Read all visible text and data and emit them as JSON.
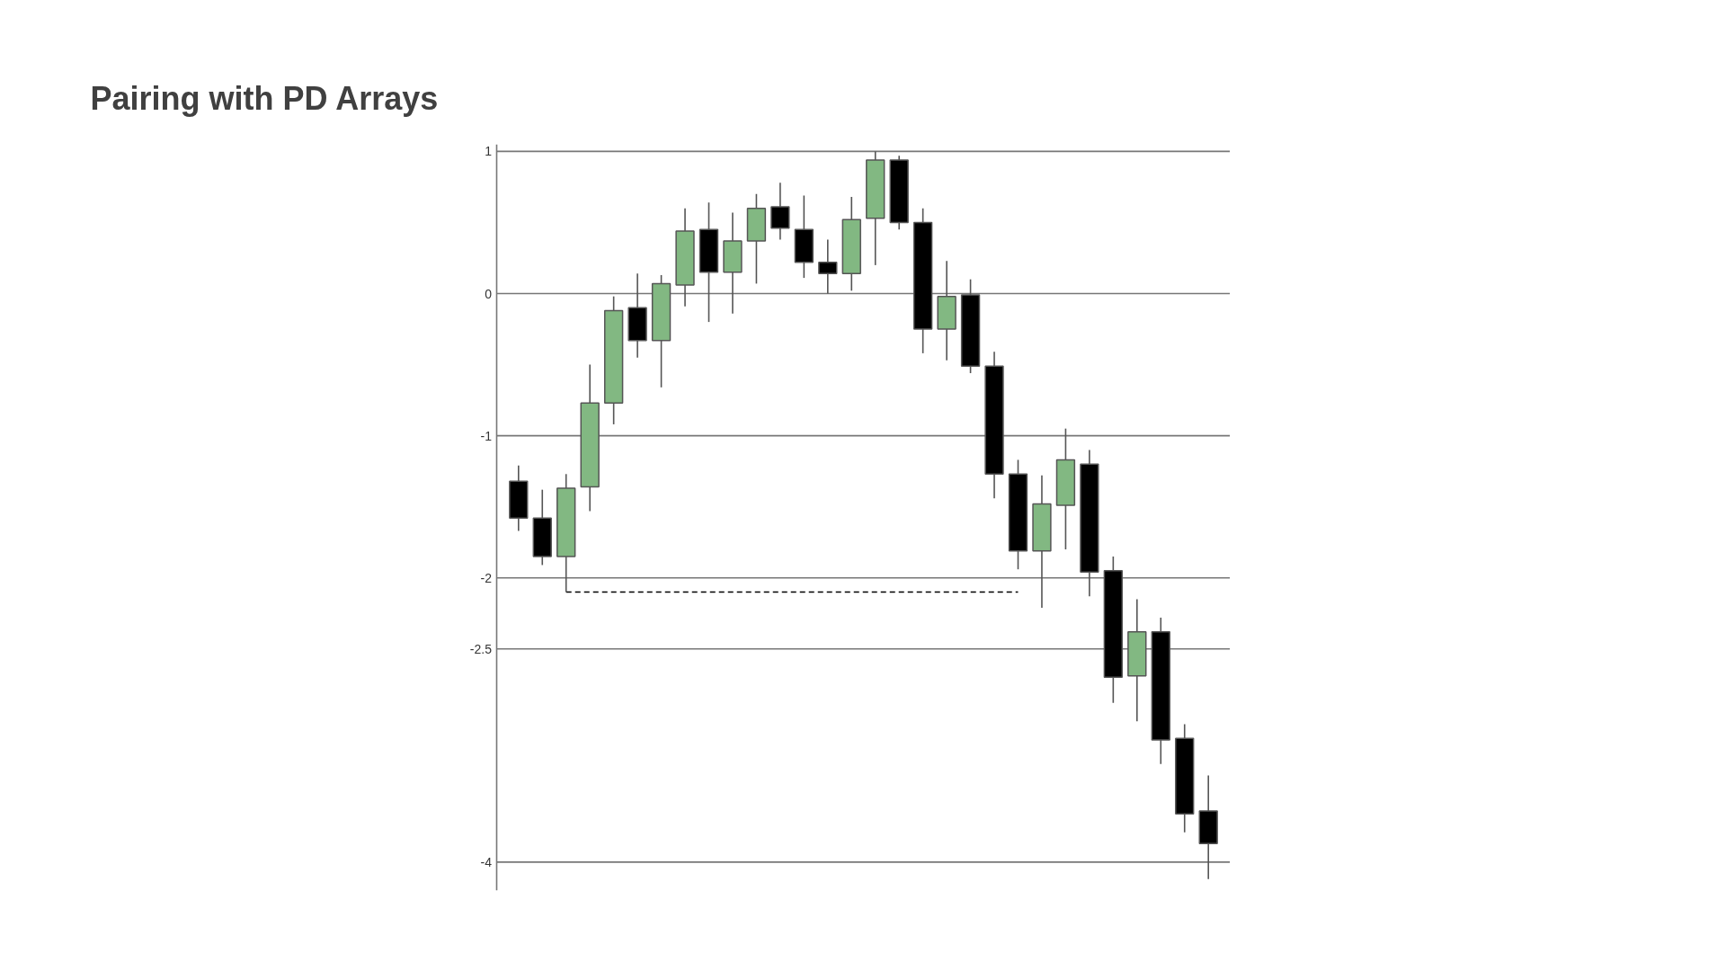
{
  "chart_data": {
    "type": "candlestick",
    "title": "Pairing with PD Arrays",
    "categories": [
      null,
      null,
      null,
      null,
      null,
      null,
      null,
      null,
      null,
      null,
      null,
      null,
      null,
      null,
      null,
      null,
      null,
      null,
      null,
      null,
      null,
      null,
      null,
      null,
      null,
      null,
      null,
      null,
      null,
      null
    ],
    "ohlc": [
      [
        -1.32,
        -1.21,
        -1.67,
        -1.58
      ],
      [
        -1.58,
        -1.38,
        -1.91,
        -1.85
      ],
      [
        -1.85,
        -1.27,
        -2.1,
        -1.37
      ],
      [
        -1.36,
        -0.5,
        -1.53,
        -0.77
      ],
      [
        -0.77,
        -0.02,
        -0.92,
        -0.12
      ],
      [
        -0.1,
        0.14,
        -0.45,
        -0.33
      ],
      [
        -0.33,
        0.13,
        -0.66,
        0.07
      ],
      [
        0.06,
        0.6,
        -0.09,
        0.44
      ],
      [
        0.45,
        0.64,
        -0.2,
        0.15
      ],
      [
        0.15,
        0.57,
        -0.14,
        0.37
      ],
      [
        0.37,
        0.7,
        0.07,
        0.6
      ],
      [
        0.61,
        0.78,
        0.38,
        0.46
      ],
      [
        0.45,
        0.69,
        0.11,
        0.22
      ],
      [
        0.22,
        0.38,
        0.0,
        0.14
      ],
      [
        0.14,
        0.68,
        0.02,
        0.52
      ],
      [
        0.53,
        1.0,
        0.2,
        0.94
      ],
      [
        0.94,
        0.97,
        0.45,
        0.5
      ],
      [
        0.5,
        0.6,
        -0.42,
        -0.25
      ],
      [
        -0.25,
        0.23,
        -0.47,
        -0.02
      ],
      [
        -0.01,
        0.1,
        -0.56,
        -0.51
      ],
      [
        -0.51,
        -0.41,
        -1.44,
        -1.27
      ],
      [
        -1.27,
        -1.17,
        -1.94,
        -1.81
      ],
      [
        -1.81,
        -1.28,
        -2.21,
        -1.48
      ],
      [
        -1.49,
        -0.95,
        -1.8,
        -1.17
      ],
      [
        -1.2,
        -1.1,
        -2.13,
        -1.96
      ],
      [
        -1.95,
        -1.85,
        -2.88,
        -2.7
      ],
      [
        -2.69,
        -2.15,
        -3.01,
        -2.38
      ],
      [
        -2.38,
        -2.28,
        -3.31,
        -3.14
      ],
      [
        -3.13,
        -3.03,
        -3.79,
        -3.66
      ],
      [
        -3.64,
        -3.39,
        -4.12,
        -3.87
      ]
    ],
    "colors": [
      "#000000",
      "#000000",
      "#82b882",
      "#82b882",
      "#82b882",
      "#000000",
      "#82b882",
      "#82b882",
      "#000000",
      "#82b882",
      "#82b882",
      "#000000",
      "#000000",
      "#000000",
      "#82b882",
      "#82b882",
      "#000000",
      "#000000",
      "#82b882",
      "#000000",
      "#000000",
      "#000000",
      "#82b882",
      "#82b882",
      "#000000",
      "#000000",
      "#82b882",
      "#000000",
      "#000000",
      "#000000"
    ],
    "series": [
      {
        "type": "line",
        "color": "#000000",
        "line_style": "dashed",
        "values": [
          null,
          null,
          -2.1,
          -2.1,
          -2.1,
          -2.1,
          -2.1,
          -2.1,
          -2.1,
          -2.1,
          -2.1,
          -2.1,
          -2.1,
          -2.1,
          -2.1,
          -2.1,
          -2.1,
          -2.1,
          -2.1,
          -2.1,
          -2.1,
          -2.1,
          null,
          null,
          null,
          null,
          null,
          null,
          null,
          null
        ]
      }
    ],
    "ref_lines": [
      {
        "axis": "y",
        "value": 1,
        "label": "1",
        "color": "#777777"
      },
      {
        "axis": "y",
        "value": 0,
        "label": "0",
        "color": "#777777"
      },
      {
        "axis": "y",
        "value": -1,
        "label": "-1",
        "color": "#777777"
      },
      {
        "axis": "y",
        "value": -2,
        "label": "-2",
        "color": "#777777"
      },
      {
        "axis": "y",
        "value": -2.5,
        "label": "-2.5",
        "color": "#777777"
      },
      {
        "axis": "y",
        "value": -4,
        "label": "-4",
        "color": "#777777"
      }
    ],
    "ylim": [
      -4.2,
      1.05
    ],
    "tick_labels": false
  }
}
